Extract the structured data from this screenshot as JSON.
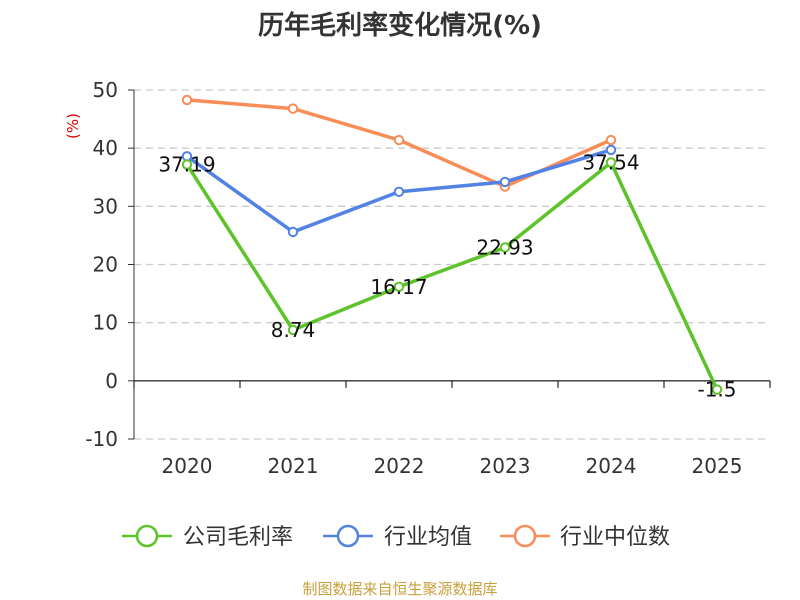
{
  "chart_data": {
    "type": "line",
    "title": "历年毛利率变化情况(%)",
    "ylabel": "(%)",
    "categories": [
      "2020",
      "2021",
      "2022",
      "2023",
      "2024",
      "2025"
    ],
    "ylim": [
      -10,
      50
    ],
    "yticks": [
      -10,
      0,
      10,
      20,
      30,
      40,
      50
    ],
    "grid": true,
    "legend_position": "bottom",
    "series": [
      {
        "name": "公司毛利率",
        "color": "#5cc329",
        "values": [
          37.19,
          8.74,
          16.17,
          22.93,
          37.54,
          -1.5
        ],
        "data_labels": [
          "37.19",
          "8.74",
          "16.17",
          "22.93",
          "37.54",
          "-1.5"
        ]
      },
      {
        "name": "行业均值",
        "color": "#5182e4",
        "values": [
          38.6,
          25.6,
          32.5,
          34.2,
          39.7,
          null
        ]
      },
      {
        "name": "行业中位数",
        "color": "#f88d58",
        "values": [
          48.3,
          46.8,
          41.4,
          33.4,
          41.4,
          null
        ]
      }
    ]
  },
  "axis_color": "#333333",
  "grid_color": "#cccccc",
  "ylabel_color": "#dd0000",
  "source": {
    "text": "制图数据来自恒生聚源数据库",
    "color": "#c8a03c"
  }
}
